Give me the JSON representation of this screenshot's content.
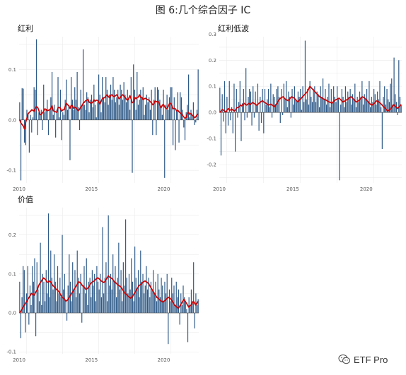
{
  "title": "图 6:几个综合因子 IC",
  "watermark": {
    "text": "ETF Pro",
    "icon": "wechat-icon"
  },
  "colors": {
    "bar": "#2e5a88",
    "line": "#cc0000",
    "grid": "#ebebeb",
    "zero": "#444444"
  },
  "chart_data": [
    {
      "type": "bar",
      "title": "红利",
      "x_start": "2010-01",
      "x_end": "2022-06",
      "xticks": [
        "2010",
        "2015",
        "2020"
      ],
      "yticks": [
        -0.1,
        0.0,
        0.1
      ],
      "ylim": [
        -0.125,
        0.165
      ],
      "grid": true,
      "series": [
        {
          "type": "bar",
          "values": [
            0.035,
            -0.12,
            0.063,
            0.062,
            -0.045,
            -0.05,
            0.02,
            0.01,
            -0.065,
            0.01,
            -0.025,
            0.005,
            0.065,
            0.06,
            0.16,
            -0.03,
            0.015,
            0.01,
            0.02,
            -0.02,
            0.07,
            0.015,
            0.02,
            0.04,
            -0.03,
            0.02,
            0.045,
            0.095,
            0.01,
            0.03,
            -0.035,
            0.02,
            0.085,
            0.005,
            0.06,
            -0.04,
            0.015,
            0.01,
            0.04,
            0.08,
            0.02,
            0.03,
            -0.08,
            0.085,
            0.04,
            0.02,
            0.065,
            0.04,
            0.095,
            0.025,
            -0.02,
            0.06,
            0.03,
            0.14,
            0.03,
            0.02,
            0.055,
            0.045,
            0.015,
            0.04,
            0.05,
            0.025,
            0.07,
            0.03,
            0.005,
            0.035,
            0.09,
            0.05,
            0.015,
            0.085,
            0.045,
            0.035,
            0.085,
            0.06,
            0.03,
            0.05,
            0.07,
            0.04,
            0.085,
            0.06,
            0.035,
            0.045,
            0.06,
            0.03,
            0.07,
            0.06,
            0.04,
            0.075,
            0.05,
            0.035,
            0.06,
            0.045,
            0.02,
            0.085,
            -0.105,
            0.11,
            0.06,
            0.02,
            0.095,
            0.03,
            0.04,
            0.06,
            0.045,
            0.065,
            0.01,
            0.03,
            0.05,
            0.035,
            0.045,
            0.02,
            0.06,
            -0.03,
            0.04,
            0.065,
            -0.03,
            0.065,
            0.06,
            0.04,
            0.025,
            0.01,
            0.06,
            -0.115,
            0.03,
            0.05,
            0.02,
            0.045,
            0.065,
            0.065,
            -0.05,
            0.045,
            -0.06,
            0.02,
            0.055,
            -0.045,
            0.055,
            0.045,
            0.02,
            -0.015,
            -0.04,
            0.015,
            0.03,
            0.09,
            0.005,
            0.02,
            0.01,
            0.035,
            -0.01,
            -0.005,
            0.02,
            0.1
          ]
        },
        {
          "type": "line",
          "values": [
            0.0,
            -0.006,
            -0.009,
            -0.012,
            -0.018,
            -0.005,
            0.003,
            0.012,
            0.015,
            0.017,
            0.02,
            0.019,
            0.017,
            0.023,
            0.026,
            0.025,
            0.019,
            0.01,
            0.011,
            0.014,
            0.017,
            0.022,
            0.021,
            0.018,
            0.019,
            0.02,
            0.023,
            0.028,
            0.018,
            0.017,
            0.016,
            0.015,
            0.024,
            0.025,
            0.023,
            0.017,
            0.02,
            0.02,
            0.027,
            0.033,
            0.03,
            0.028,
            0.023,
            0.029,
            0.028,
            0.023,
            0.025,
            0.024,
            0.021,
            0.018,
            0.021,
            0.026,
            0.028,
            0.033,
            0.035,
            0.038,
            0.039,
            0.041,
            0.035,
            0.034,
            0.033,
            0.035,
            0.04,
            0.037,
            0.039,
            0.039,
            0.035,
            0.031,
            0.037,
            0.042,
            0.044,
            0.044,
            0.048,
            0.05,
            0.046,
            0.044,
            0.049,
            0.05,
            0.047,
            0.046,
            0.048,
            0.05,
            0.046,
            0.042,
            0.044,
            0.048,
            0.05,
            0.047,
            0.045,
            0.041,
            0.039,
            0.042,
            0.048,
            0.042,
            0.034,
            0.035,
            0.045,
            0.042,
            0.045,
            0.045,
            0.05,
            0.045,
            0.045,
            0.04,
            0.042,
            0.043,
            0.041,
            0.04,
            0.039,
            0.036,
            0.034,
            0.03,
            0.032,
            0.038,
            0.036,
            0.037,
            0.035,
            0.029,
            0.024,
            0.029,
            0.031,
            0.026,
            0.023,
            0.022,
            0.027,
            0.032,
            0.033,
            0.029,
            0.022,
            0.023,
            0.022,
            0.018,
            0.019,
            0.016,
            0.014,
            0.012,
            0.009,
            0.006,
            0.003,
            0.005,
            0.012,
            0.015,
            0.011,
            0.013,
            0.009,
            0.008,
            0.004,
            0.006,
            0.01,
            0.012
          ]
        }
      ]
    },
    {
      "type": "bar",
      "title": "红利低波",
      "x_start": "2010-01",
      "x_end": "2022-06",
      "xticks": [
        "2010",
        "2015",
        "2020"
      ],
      "yticks": [
        -0.2,
        -0.1,
        0.0,
        0.1,
        0.2,
        0.3
      ],
      "ylim": [
        -0.27,
        0.29
      ],
      "grid": true,
      "series": [
        {
          "type": "bar",
          "values": [
            0.095,
            -0.165,
            0.07,
            -0.035,
            0.12,
            -0.08,
            0.06,
            -0.05,
            0.12,
            -0.03,
            0.02,
            -0.08,
            0.11,
            -0.15,
            0.09,
            -0.02,
            0.04,
            0.12,
            -0.11,
            0.035,
            0.09,
            -0.03,
            0.17,
            -0.02,
            0.06,
            0.09,
            0.08,
            -0.05,
            0.1,
            -0.02,
            0.08,
            0.03,
            0.11,
            -0.07,
            0.06,
            -0.04,
            0.09,
            -0.08,
            0.09,
            0.03,
            0.05,
            0.09,
            0.02,
            0.11,
            -0.02,
            0.07,
            0.06,
            0.03,
            0.09,
            0.1,
            0.06,
            -0.04,
            0.09,
            -0.01,
            0.11,
            0.05,
            0.12,
            0.02,
            0.08,
            0.06,
            -0.02,
            0.09,
            0.03,
            0.1,
            0.05,
            0.04,
            0.08,
            0.06,
            0.09,
            0.01,
            0.1,
            0.04,
            0.275,
            0.05,
            0.09,
            0.03,
            0.12,
            0.06,
            0.04,
            0.09,
            0.1,
            0.04,
            0.08,
            0.07,
            0.02,
            0.1,
            0.06,
            0.13,
            0.05,
            0.09,
            0.03,
            0.06,
            0.11,
            0.02,
            0.09,
            0.04,
            0.1,
            0.06,
            0.04,
            0.1,
            0.05,
            -0.26,
            0.03,
            0.09,
            0.06,
            0.02,
            0.1,
            0.04,
            0.08,
            0.06,
            0.09,
            0.03,
            0.07,
            0.05,
            0.11,
            0.02,
            0.06,
            0.04,
            0.08,
            0.06,
            0.12,
            0.03,
            0.07,
            0.05,
            0.09,
            0.04,
            0.12,
            0.02,
            0.06,
            0.04,
            0.09,
            0.07,
            0.03,
            0.08,
            0.05,
            0.12,
            0.02,
            -0.14,
            0.06,
            0.1,
            0.03,
            0.09,
            0.05,
            0.04,
            0.11,
            0.13,
            0.03,
            0.21,
            0.07,
            0.04,
            -0.01,
            0.2,
            0.06,
            0.03
          ]
        },
        {
          "type": "line",
          "values": [
            0.0,
            0.005,
            0.012,
            0.008,
            0.004,
            0.002,
            0.01,
            0.015,
            0.008,
            0.01,
            0.012,
            0.008,
            0.005,
            0.01,
            0.018,
            0.02,
            0.022,
            0.028,
            0.025,
            0.03,
            0.035,
            0.03,
            0.028,
            0.032,
            0.035,
            0.03,
            0.035,
            0.038,
            0.035,
            0.032,
            0.028,
            0.03,
            0.035,
            0.038,
            0.042,
            0.045,
            0.04,
            0.038,
            0.035,
            0.032,
            0.028,
            0.03,
            0.032,
            0.028,
            0.025,
            0.022,
            0.03,
            0.035,
            0.045,
            0.05,
            0.055,
            0.058,
            0.06,
            0.055,
            0.05,
            0.048,
            0.045,
            0.05,
            0.055,
            0.06,
            0.058,
            0.055,
            0.05,
            0.045,
            0.04,
            0.045,
            0.05,
            0.055,
            0.06,
            0.065,
            0.07,
            0.075,
            0.08,
            0.09,
            0.1,
            0.095,
            0.09,
            0.085,
            0.08,
            0.075,
            0.07,
            0.065,
            0.06,
            0.058,
            0.055,
            0.052,
            0.05,
            0.048,
            0.045,
            0.042,
            0.04,
            0.038,
            0.035,
            0.04,
            0.045,
            0.048,
            0.05,
            0.052,
            0.055,
            0.05,
            0.045,
            0.04,
            0.042,
            0.045,
            0.048,
            0.05,
            0.055,
            0.058,
            0.06,
            0.055,
            0.05,
            0.045,
            0.04,
            0.042,
            0.045,
            0.05,
            0.055,
            0.06,
            0.058,
            0.055,
            0.05,
            0.045,
            0.04,
            0.035,
            0.03,
            0.028,
            0.032,
            0.035,
            0.04,
            0.045,
            0.042,
            0.038,
            0.035,
            0.03,
            0.025,
            0.02,
            0.015,
            0.01,
            0.005,
            0.008,
            0.012,
            0.018,
            0.025,
            0.03,
            0.025,
            0.02,
            0.015,
            0.02,
            0.025,
            0.03
          ]
        }
      ]
    },
    {
      "type": "bar",
      "title": "价值",
      "x_start": "2010-01",
      "x_end": "2022-06",
      "xticks": [
        "2010",
        "2015",
        "2020"
      ],
      "yticks": [
        -0.1,
        0.0,
        0.1,
        0.2
      ],
      "ylim": [
        -0.105,
        0.27
      ],
      "grid": true,
      "series": [
        {
          "type": "bar",
          "values": [
            0.08,
            -0.065,
            0.04,
            0.12,
            0.11,
            -0.05,
            0.05,
            0.12,
            -0.03,
            0.07,
            0.02,
            0.12,
            0.08,
            0.14,
            -0.06,
            0.13,
            0.06,
            0.03,
            0.18,
            0.02,
            0.1,
            0.08,
            0.03,
            0.11,
            0.05,
            0.255,
            0.04,
            0.16,
            0.09,
            0.06,
            0.15,
            0.08,
            0.03,
            0.12,
            0.05,
            0.09,
            0.04,
            0.2,
            0.06,
            0.1,
            0.03,
            -0.02,
            0.07,
            0.15,
            0.08,
            0.03,
            0.13,
            0.06,
            0.11,
            0.04,
            0.16,
            0.09,
            0.05,
            0.1,
            -0.025,
            0.07,
            0.12,
            0.05,
            0.14,
            0.02,
            0.08,
            0.09,
            0.04,
            0.11,
            0.07,
            0.1,
            0.03,
            0.12,
            0.08,
            0.06,
            0.1,
            0.04,
            0.22,
            0.05,
            0.09,
            0.13,
            0.03,
            0.25,
            0.07,
            0.1,
            0.06,
            0.15,
            0.08,
            0.12,
            0.04,
            0.09,
            0.18,
            0.06,
            0.11,
            0.03,
            0.13,
            0.07,
            0.24,
            0.09,
            0.05,
            0.1,
            0.06,
            0.14,
            0.08,
            0.03,
            0.17,
            0.09,
            0.06,
            0.11,
            0.04,
            0.16,
            0.08,
            0.1,
            0.05,
            0.07,
            0.12,
            0.06,
            0.09,
            0.04,
            0.08,
            0.06,
            0.11,
            0.05,
            0.08,
            0.03,
            0.1,
            0.06,
            0.04,
            0.09,
            0.07,
            0.03,
            0.08,
            0.05,
            0.1,
            -0.08,
            0.06,
            0.03,
            0.09,
            0.05,
            0.07,
            0.02,
            0.08,
            0.04,
            0.06,
            -0.03,
            0.05,
            0.02,
            0.07,
            0.04,
            0.03,
            0.01,
            -0.075,
            0.04,
            0.02,
            0.06,
            0.03,
            0.13,
            -0.04,
            0.05,
            0.02,
            0.035
          ]
        },
        {
          "type": "line",
          "values": [
            0.0,
            0.004,
            0.01,
            0.015,
            0.02,
            0.025,
            0.03,
            0.035,
            0.04,
            0.045,
            0.05,
            0.048,
            0.045,
            0.05,
            0.055,
            0.06,
            0.07,
            0.075,
            0.08,
            0.085,
            0.09,
            0.088,
            0.085,
            0.08,
            0.078,
            0.082,
            0.08,
            0.075,
            0.07,
            0.068,
            0.065,
            0.06,
            0.058,
            0.055,
            0.05,
            0.045,
            0.04,
            0.038,
            0.035,
            0.03,
            0.032,
            0.035,
            0.04,
            0.045,
            0.05,
            0.055,
            0.06,
            0.065,
            0.07,
            0.075,
            0.08,
            0.078,
            0.075,
            0.07,
            0.068,
            0.065,
            0.06,
            0.062,
            0.065,
            0.07,
            0.075,
            0.078,
            0.08,
            0.082,
            0.085,
            0.088,
            0.09,
            0.088,
            0.085,
            0.082,
            0.08,
            0.078,
            0.08,
            0.085,
            0.09,
            0.095,
            0.092,
            0.09,
            0.088,
            0.085,
            0.08,
            0.078,
            0.075,
            0.072,
            0.07,
            0.068,
            0.065,
            0.06,
            0.055,
            0.05,
            0.048,
            0.045,
            0.042,
            0.04,
            0.038,
            0.04,
            0.045,
            0.05,
            0.055,
            0.06,
            0.065,
            0.07,
            0.072,
            0.075,
            0.078,
            0.08,
            0.082,
            0.08,
            0.078,
            0.075,
            0.07,
            0.065,
            0.06,
            0.055,
            0.05,
            0.045,
            0.04,
            0.038,
            0.035,
            0.032,
            0.03,
            0.028,
            0.03,
            0.032,
            0.035,
            0.038,
            0.04,
            0.038,
            0.035,
            0.03,
            0.025,
            0.02,
            0.018,
            0.015,
            0.012,
            0.015,
            0.02,
            0.025,
            0.03,
            0.035,
            0.03,
            0.025,
            0.02,
            0.015,
            0.018,
            0.02,
            0.025,
            0.03,
            0.025,
            0.02,
            0.025,
            0.03
          ]
        }
      ]
    }
  ]
}
